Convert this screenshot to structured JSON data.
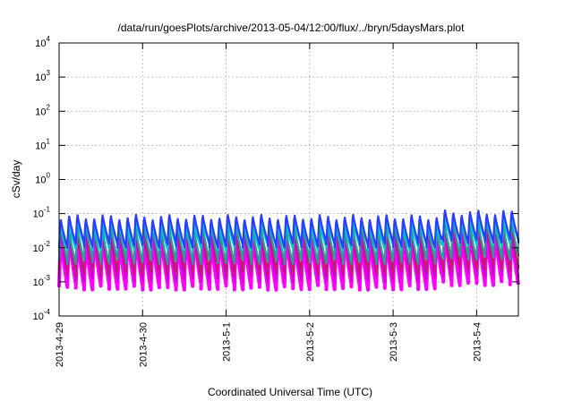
{
  "chart_data": {
    "type": "line",
    "title": "/data/run/goesPlots/archive/2013-05-04/12:00/flux/../bryn/5daysMars.plot",
    "xlabel": "Coordinated Universal Time (UTC)",
    "ylabel": "cSv/day",
    "yscale": "log",
    "ylim": [
      0.0001,
      10000
    ],
    "y_ticks": [
      {
        "base": "10",
        "exp": "4",
        "value": 10000
      },
      {
        "base": "10",
        "exp": "3",
        "value": 1000
      },
      {
        "base": "10",
        "exp": "2",
        "value": 100
      },
      {
        "base": "10",
        "exp": "1",
        "value": 10
      },
      {
        "base": "10",
        "exp": "0",
        "value": 1
      },
      {
        "base": "10",
        "exp": "-1",
        "value": 0.1
      },
      {
        "base": "10",
        "exp": "-2",
        "value": 0.01
      },
      {
        "base": "10",
        "exp": "-3",
        "value": 0.001
      },
      {
        "base": "10",
        "exp": "-4",
        "value": 0.0001
      }
    ],
    "xlim": [
      "2013-4-29",
      "2013-5-4 12:00"
    ],
    "x_ticks": [
      "2013-4-29",
      "2013-4-30",
      "2013-5-1",
      "2013-5-2",
      "2013-5-3",
      "2013-5-4"
    ],
    "grid": true,
    "legend": "none",
    "pattern": {
      "cycles_per_day": 10,
      "description": "sawtooth: rises sharply to a peak then decays over each cycle",
      "elevated_from": "2013-5-3 14:00"
    },
    "series": [
      {
        "color": "#ff00ff",
        "peak": 0.025,
        "trough": 0.0007
      },
      {
        "color": "#cc00cc",
        "peak": 0.035,
        "trough": 0.0012
      },
      {
        "color": "#c02060",
        "peak": 0.055,
        "trough": 0.002
      },
      {
        "color": "#22a0a0",
        "peak": 0.045,
        "trough": 0.004
      },
      {
        "color": "#00c8c8",
        "peak": 0.06,
        "trough": 0.01
      },
      {
        "color": "#2a3cff",
        "peak": 0.09,
        "trough": 0.012
      }
    ]
  }
}
